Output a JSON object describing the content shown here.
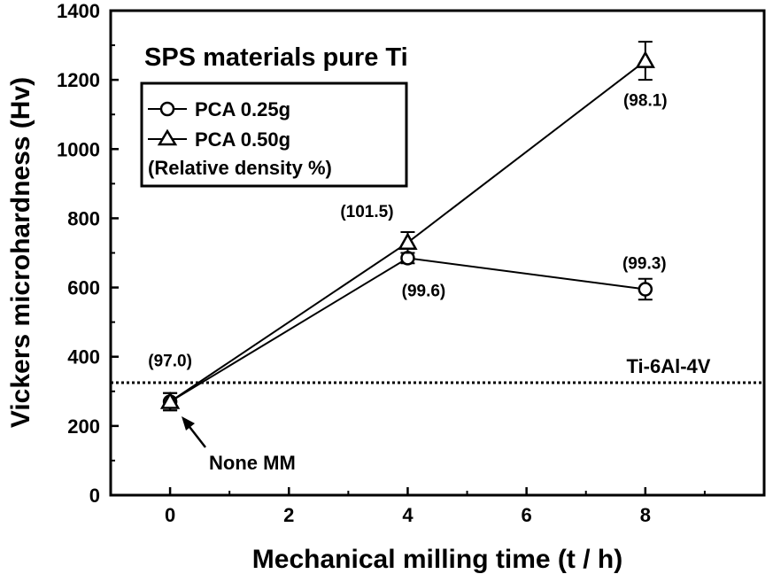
{
  "chart_data": {
    "type": "line",
    "title": "SPS materials pure Ti",
    "xlabel": "Mechanical milling time (t / h)",
    "ylabel": "Vickers microhardness (Hv)",
    "xlim": [
      -1,
      10
    ],
    "ylim": [
      0,
      1400
    ],
    "xticks": [
      0,
      2,
      4,
      6,
      8
    ],
    "yticks": [
      0,
      200,
      400,
      600,
      800,
      1000,
      1200,
      1400
    ],
    "grid": false,
    "legend_position": "top-left",
    "legend_note": "(Relative density %)",
    "series": [
      {
        "name": "PCA 0.25g",
        "marker": "circle",
        "x": [
          0,
          4,
          8
        ],
        "y": [
          270,
          685,
          595
        ],
        "err": [
          25,
          15,
          30
        ],
        "density_labels": [
          "(97.0)",
          "(99.6)",
          "(99.3)"
        ]
      },
      {
        "name": "PCA 0.50g",
        "marker": "triangle",
        "x": [
          0,
          4,
          8
        ],
        "y": [
          270,
          730,
          1255
        ],
        "err": [
          25,
          30,
          55
        ],
        "density_labels": [
          "",
          "(101.5)",
          "(98.1)"
        ]
      }
    ],
    "reference_line": {
      "label": "Ti-6Al-4V",
      "y": 325,
      "style": "dotted"
    },
    "annotations": [
      {
        "text": "None MM",
        "x": 0,
        "y": 270
      }
    ]
  }
}
